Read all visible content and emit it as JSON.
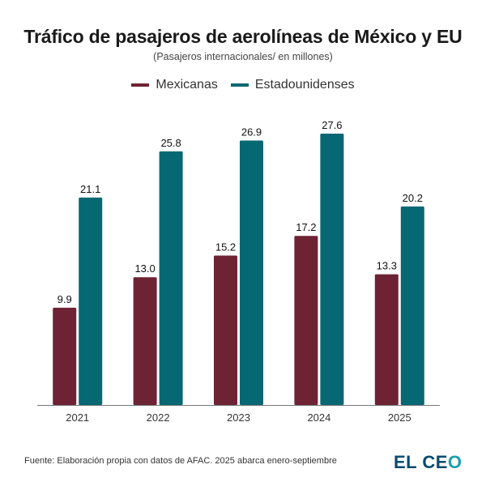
{
  "header": {
    "title": "Tráfico de pasajeros de aerolíneas de México y EU",
    "subtitle": "(Pasajeros internacionales/ en millones)"
  },
  "footer": {
    "source": "Fuente: Elaboración propia con datos de AFAC. 2025 abarca enero-septiembre",
    "logo_main": "EL CE",
    "logo_accent": "O"
  },
  "chart_data": {
    "type": "bar",
    "title": "Tráfico de pasajeros de aerolíneas de México y EU",
    "subtitle": "(Pasajeros internacionales/ en millones)",
    "xlabel": "",
    "ylabel": "",
    "categories": [
      "2021",
      "2022",
      "2023",
      "2024",
      "2025"
    ],
    "series": [
      {
        "name": "Mexicanas",
        "color": "#6e2334",
        "values": [
          9.9,
          13.0,
          15.2,
          17.2,
          13.3
        ]
      },
      {
        "name": "Estadounidenses",
        "color": "#066872",
        "values": [
          21.1,
          25.8,
          26.9,
          27.6,
          20.2
        ]
      }
    ],
    "ylim": [
      0,
      27.6
    ],
    "grid": false,
    "legend": "top-center",
    "data_labels": true
  }
}
